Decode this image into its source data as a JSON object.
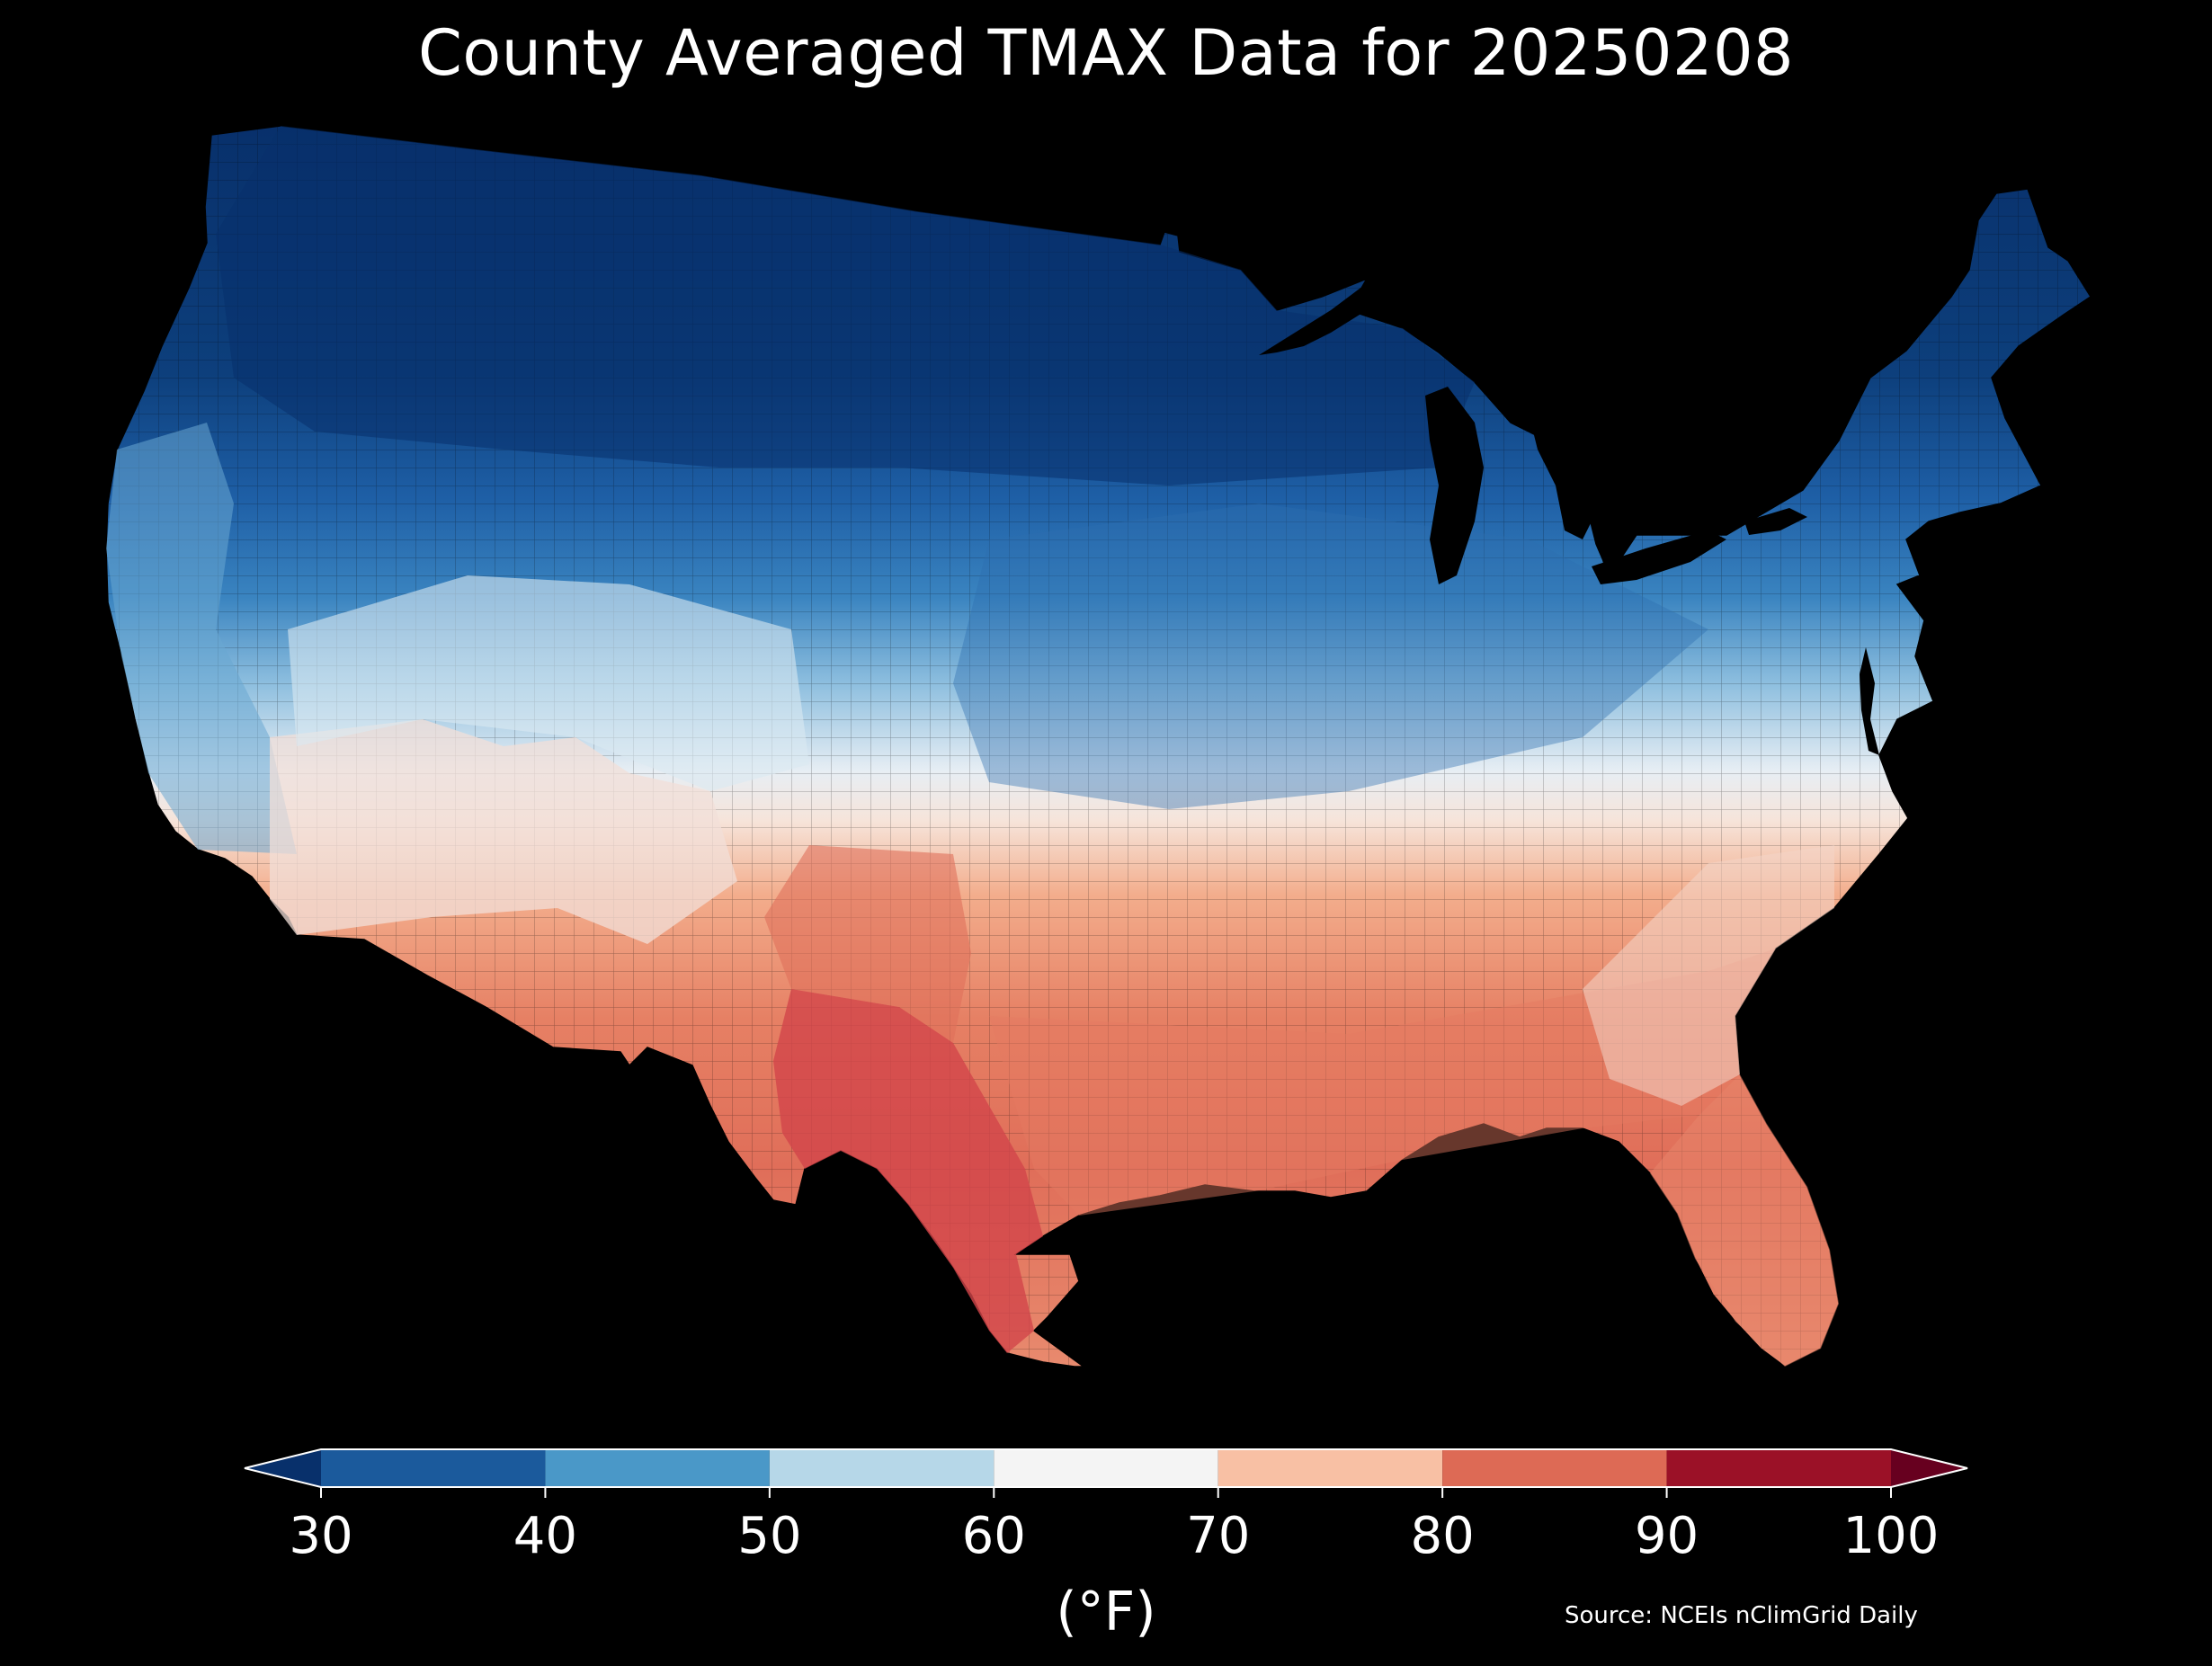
{
  "title": "County Averaged TMAX Data for 20250208",
  "colorbar": {
    "ticks": [
      "30",
      "40",
      "50",
      "60",
      "70",
      "80",
      "90",
      "100"
    ],
    "unit": "(°F)",
    "bins": [
      {
        "from": 30,
        "to": 40,
        "color": "#1b5a9c"
      },
      {
        "from": 40,
        "to": 50,
        "color": "#4a98c8"
      },
      {
        "from": 50,
        "to": 60,
        "color": "#b6d7e8"
      },
      {
        "from": 60,
        "to": 70,
        "color": "#f4f4f4"
      },
      {
        "from": 70,
        "to": 80,
        "color": "#f8c0a4"
      },
      {
        "from": 80,
        "to": 90,
        "color": "#dd6a55"
      },
      {
        "from": 90,
        "to": 100,
        "color": "#9b1127"
      }
    ],
    "under_color": "#08306b",
    "over_color": "#67001f",
    "extend": "both"
  },
  "source": "Source: NCEIs nClimGrid Daily",
  "background_color": "#000000"
}
